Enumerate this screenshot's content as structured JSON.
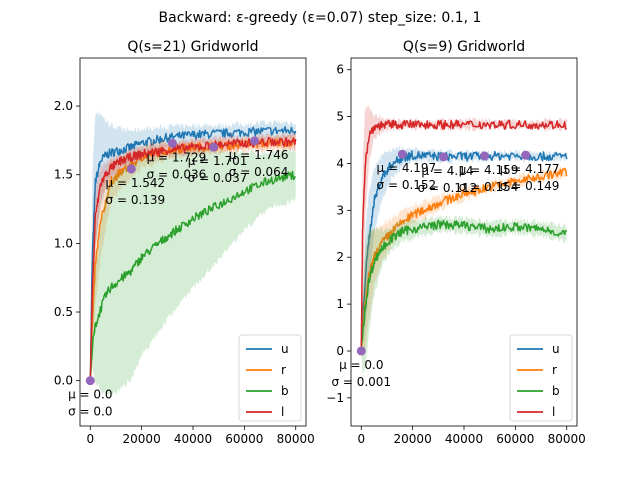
{
  "suptitle": "Backward: ε-greedy (ε=0.07) step_size: 0.1, 1",
  "colors": {
    "u": "#1f77b4",
    "r": "#ff7f0e",
    "b": "#2ca02c",
    "l": "#d62728",
    "marker": "#9467bd"
  },
  "chart_data": [
    {
      "type": "line",
      "title": "Q(s=21) Gridworld",
      "xlabel": "",
      "ylabel": "",
      "xlim": [
        -4000,
        84000
      ],
      "ylim": [
        -0.33,
        2.35
      ],
      "xticks": [
        0,
        20000,
        40000,
        60000,
        80000
      ],
      "xtick_labels": [
        "0",
        "20000",
        "40000",
        "60000",
        "80000"
      ],
      "yticks": [
        0.0,
        0.5,
        1.0,
        1.5,
        2.0
      ],
      "ytick_labels": [
        "0.0",
        "0.5",
        "1.0",
        "1.5",
        "2.0"
      ],
      "legend_position": "lower-right",
      "series": [
        {
          "name": "u",
          "x": [
            0,
            800,
            2000,
            4000,
            6000,
            8000,
            12000,
            16000,
            20000,
            30000,
            40000,
            50000,
            60000,
            70000,
            80000
          ],
          "values": [
            0,
            0.9,
            1.45,
            1.6,
            1.64,
            1.66,
            1.68,
            1.7,
            1.73,
            1.77,
            1.79,
            1.8,
            1.81,
            1.82,
            1.82
          ],
          "band": [
            0,
            0.6,
            0.5,
            0.35,
            0.25,
            0.2,
            0.15,
            0.12,
            0.1,
            0.08,
            0.07,
            0.06,
            0.06,
            0.06,
            0.06
          ]
        },
        {
          "name": "r",
          "x": [
            0,
            800,
            2000,
            4000,
            6000,
            8000,
            12000,
            16000,
            20000,
            30000,
            40000,
            50000,
            60000,
            70000,
            80000
          ],
          "values": [
            0,
            0.4,
            0.85,
            1.15,
            1.3,
            1.45,
            1.52,
            1.57,
            1.63,
            1.68,
            1.7,
            1.71,
            1.72,
            1.73,
            1.74
          ],
          "band": [
            0,
            0.3,
            0.3,
            0.25,
            0.2,
            0.15,
            0.12,
            0.1,
            0.08,
            0.06,
            0.05,
            0.05,
            0.05,
            0.05,
            0.05
          ]
        },
        {
          "name": "b",
          "x": [
            0,
            800,
            2000,
            4000,
            6000,
            8000,
            12000,
            16000,
            20000,
            30000,
            40000,
            50000,
            60000,
            70000,
            80000
          ],
          "values": [
            0,
            0.25,
            0.4,
            0.52,
            0.62,
            0.68,
            0.74,
            0.8,
            0.9,
            1.05,
            1.18,
            1.28,
            1.38,
            1.46,
            1.5
          ],
          "band": [
            0,
            0.15,
            0.4,
            0.6,
            0.72,
            0.78,
            0.8,
            0.78,
            0.72,
            0.6,
            0.5,
            0.4,
            0.28,
            0.2,
            0.18
          ]
        },
        {
          "name": "l",
          "x": [
            0,
            800,
            2000,
            4000,
            6000,
            8000,
            12000,
            16000,
            20000,
            30000,
            40000,
            50000,
            60000,
            70000,
            80000
          ],
          "values": [
            0,
            0.65,
            1.2,
            1.43,
            1.5,
            1.55,
            1.6,
            1.63,
            1.65,
            1.68,
            1.7,
            1.72,
            1.73,
            1.74,
            1.74
          ],
          "band": [
            0,
            0.3,
            0.2,
            0.12,
            0.08,
            0.06,
            0.05,
            0.05,
            0.05,
            0.05,
            0.05,
            0.05,
            0.05,
            0.05,
            0.05
          ]
        }
      ],
      "annotations": [
        {
          "x": 0,
          "y": 0.0,
          "mu": "μ = 0.0",
          "sigma": "σ = 0.0"
        },
        {
          "x": 16000,
          "y": 1.542,
          "mu": "μ = 1.542",
          "sigma": "σ = 0.139"
        },
        {
          "x": 32000,
          "y": 1.729,
          "mu": "μ = 1.729",
          "sigma": "σ = 0.036"
        },
        {
          "x": 48000,
          "y": 1.701,
          "mu": "μ = 1.701",
          "sigma": "σ = 0.037"
        },
        {
          "x": 64000,
          "y": 1.746,
          "mu": "μ = 1.746",
          "sigma": "σ = 0.064"
        }
      ]
    },
    {
      "type": "line",
      "title": "Q(s=9) Gridworld",
      "xlabel": "",
      "ylabel": "",
      "xlim": [
        -4000,
        84000
      ],
      "ylim": [
        -1.6,
        6.25
      ],
      "xticks": [
        0,
        20000,
        40000,
        60000,
        80000
      ],
      "xtick_labels": [
        "0",
        "20000",
        "40000",
        "60000",
        "80000"
      ],
      "yticks": [
        -1,
        0,
        1,
        2,
        3,
        4,
        5,
        6
      ],
      "ytick_labels": [
        "−1",
        "0",
        "1",
        "2",
        "3",
        "4",
        "5",
        "6"
      ],
      "legend_position": "lower-right",
      "series": [
        {
          "name": "u",
          "x": [
            0,
            500,
            1500,
            3000,
            5000,
            8000,
            12000,
            16000,
            20000,
            30000,
            40000,
            50000,
            60000,
            70000,
            80000
          ],
          "values": [
            0.1,
            0.6,
            1.5,
            2.4,
            3.2,
            3.7,
            4.0,
            4.12,
            4.18,
            4.15,
            4.15,
            4.16,
            4.17,
            4.15,
            4.15
          ],
          "band": [
            0,
            0.5,
            1.0,
            1.0,
            0.7,
            0.5,
            0.3,
            0.2,
            0.12,
            0.1,
            0.08,
            0.08,
            0.08,
            0.08,
            0.08
          ]
        },
        {
          "name": "r",
          "x": [
            0,
            500,
            1500,
            3000,
            5000,
            8000,
            12000,
            16000,
            20000,
            30000,
            40000,
            50000,
            60000,
            70000,
            80000
          ],
          "values": [
            0.1,
            0.4,
            1.0,
            1.6,
            2.0,
            2.3,
            2.55,
            2.75,
            2.9,
            3.15,
            3.35,
            3.5,
            3.62,
            3.72,
            3.82
          ],
          "band": [
            0,
            0.5,
            1.0,
            0.9,
            0.6,
            0.4,
            0.3,
            0.25,
            0.2,
            0.15,
            0.12,
            0.1,
            0.1,
            0.1,
            0.1
          ]
        },
        {
          "name": "b",
          "x": [
            0,
            500,
            1500,
            3000,
            5000,
            8000,
            12000,
            16000,
            20000,
            30000,
            40000,
            50000,
            60000,
            70000,
            80000
          ],
          "values": [
            0.1,
            0.3,
            0.9,
            1.5,
            1.9,
            2.2,
            2.4,
            2.55,
            2.6,
            2.7,
            2.68,
            2.6,
            2.65,
            2.6,
            2.5
          ],
          "band": [
            0,
            0.8,
            1.3,
            1.1,
            0.7,
            0.4,
            0.25,
            0.2,
            0.2,
            0.15,
            0.15,
            0.15,
            0.15,
            0.15,
            0.15
          ]
        },
        {
          "name": "l",
          "x": [
            0,
            500,
            1500,
            3000,
            5000,
            8000,
            12000,
            16000,
            20000,
            30000,
            40000,
            50000,
            60000,
            70000,
            80000
          ],
          "values": [
            0.1,
            2.5,
            4.0,
            4.6,
            4.78,
            4.82,
            4.83,
            4.83,
            4.83,
            4.83,
            4.83,
            4.83,
            4.83,
            4.83,
            4.83
          ],
          "band": [
            0,
            1.5,
            1.2,
            0.6,
            0.25,
            0.15,
            0.1,
            0.08,
            0.08,
            0.08,
            0.08,
            0.08,
            0.08,
            0.08,
            0.08
          ]
        }
      ],
      "annotations": [
        {
          "x": 0,
          "y": 0.0,
          "mu": "μ = 0.0",
          "sigma": "σ = 0.001"
        },
        {
          "x": 16000,
          "y": 4.197,
          "mu": "μ = 4.197",
          "sigma": "σ = 0.152"
        },
        {
          "x": 32000,
          "y": 4.14,
          "mu": "μ = 4.14",
          "sigma": "σ = 0.112"
        },
        {
          "x": 48000,
          "y": 4.159,
          "mu": "μ = 4.159",
          "sigma": "σ = 0.154"
        },
        {
          "x": 64000,
          "y": 4.177,
          "mu": "μ = 4.177",
          "sigma": "σ = 0.149"
        }
      ]
    }
  ]
}
